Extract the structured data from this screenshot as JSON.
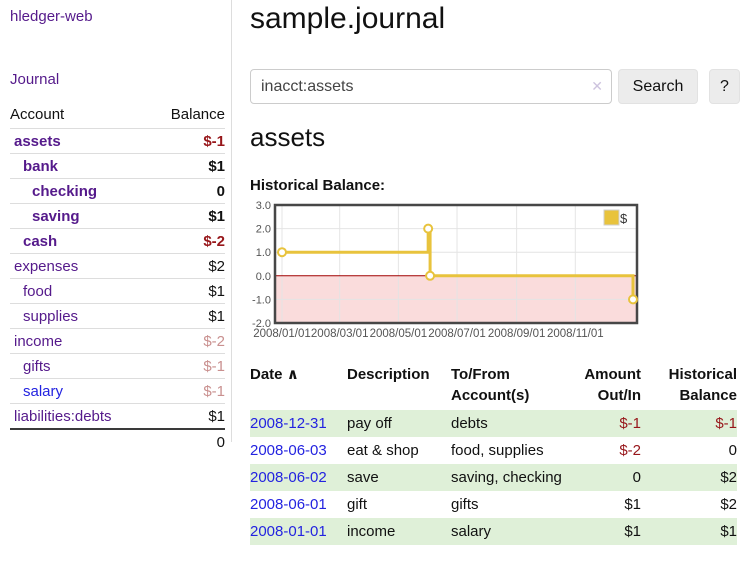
{
  "colors": {
    "link_purple": "#551a8b",
    "link_blue": "#2323e0",
    "negative": "#97161a",
    "negative_faded": "#c9908f",
    "row_green": "#dff0d8",
    "series_yellow": "#e8c33d",
    "chart_negative_fill": "#fadcdc",
    "chart_zero_line": "#a00000",
    "chart_border": "#474747",
    "grid_line": "#e4e4e4",
    "tick_text": "#545454"
  },
  "sidebar": {
    "brand": "hledger-web",
    "journal_link": "Journal",
    "accounts_table": {
      "account_header": "Account",
      "balance_header": "Balance",
      "rows": [
        {
          "name": "assets",
          "balance": "$-1",
          "depth": 1,
          "bold": true,
          "link_color": "purple",
          "balance_color": "negative"
        },
        {
          "name": "bank",
          "balance": "$1",
          "depth": 2,
          "bold": true,
          "link_color": "purple",
          "balance_color": "plain"
        },
        {
          "name": "checking",
          "balance": "0",
          "depth": 3,
          "bold": true,
          "link_color": "purple",
          "balance_color": "plain"
        },
        {
          "name": "saving",
          "balance": "$1",
          "depth": 3,
          "bold": true,
          "link_color": "purple",
          "balance_color": "plain"
        },
        {
          "name": "cash",
          "balance": "$-2",
          "depth": 2,
          "bold": true,
          "link_color": "purple",
          "balance_color": "negative"
        },
        {
          "name": "expenses",
          "balance": "$2",
          "depth": 1,
          "bold": false,
          "link_color": "purple",
          "balance_color": "plain"
        },
        {
          "name": "food",
          "balance": "$1",
          "depth": 2,
          "bold": false,
          "link_color": "purple",
          "balance_color": "plain"
        },
        {
          "name": "supplies",
          "balance": "$1",
          "depth": 2,
          "bold": false,
          "link_color": "purple",
          "balance_color": "plain"
        },
        {
          "name": "income",
          "balance": "$-2",
          "depth": 1,
          "bold": false,
          "link_color": "purple",
          "balance_color": "negative_faded"
        },
        {
          "name": "gifts",
          "balance": "$-1",
          "depth": 2,
          "bold": false,
          "link_color": "purple",
          "balance_color": "negative_faded"
        },
        {
          "name": "salary",
          "balance": "$-1",
          "depth": 2,
          "bold": false,
          "link_color": "blue",
          "balance_color": "negative_faded"
        },
        {
          "name": "liabilities:debts",
          "balance": "$1",
          "depth": 1,
          "bold": false,
          "link_color": "purple",
          "balance_color": "plain"
        }
      ],
      "total": "0"
    }
  },
  "main": {
    "title": "sample.journal",
    "search": {
      "query": "inacct:assets",
      "clear_icon": "✕",
      "search_button": "Search",
      "help_button": "?"
    },
    "account_heading": "assets",
    "section_label": "Historical Balance:",
    "register": {
      "headers": {
        "date": "Date",
        "sort_indicator": "∧",
        "description": "Description",
        "accounts": "To/From Account(s)",
        "amount": "Amount Out/In",
        "balance": "Historical Balance"
      },
      "rows": [
        {
          "date": "2008-12-31",
          "description": "pay off",
          "accounts": "debts",
          "amount": "$-1",
          "amount_color": "negative",
          "balance": "$-1",
          "balance_color": "negative",
          "shaded": true
        },
        {
          "date": "2008-06-03",
          "description": "eat & shop",
          "accounts": "food, supplies",
          "amount": "$-2",
          "amount_color": "negative",
          "balance": "0",
          "balance_color": "plain",
          "shaded": false
        },
        {
          "date": "2008-06-02",
          "description": "save",
          "accounts": "saving, checking",
          "amount": "0",
          "amount_color": "plain",
          "balance": "$2",
          "balance_color": "plain",
          "shaded": true
        },
        {
          "date": "2008-06-01",
          "description": "gift",
          "accounts": "gifts",
          "amount": "$1",
          "amount_color": "plain",
          "balance": "$2",
          "balance_color": "plain",
          "shaded": false
        },
        {
          "date": "2008-01-01",
          "description": "income",
          "accounts": "salary",
          "amount": "$1",
          "amount_color": "plain",
          "balance": "$1",
          "balance_color": "plain",
          "shaded": true
        }
      ]
    }
  },
  "chart_data": {
    "type": "line",
    "step": true,
    "title": "Historical Balance",
    "series": [
      {
        "name": "$",
        "color": "#e8c33d",
        "points": [
          {
            "date": "2008-01-01",
            "day": 0,
            "value": 1
          },
          {
            "date": "2008-06-01",
            "day": 152,
            "value": 2
          },
          {
            "date": "2008-06-03",
            "day": 154,
            "value": 0
          },
          {
            "date": "2008-12-31",
            "day": 365,
            "value": -1
          }
        ]
      }
    ],
    "x_ticks": [
      {
        "label": "2008/01/01",
        "day": 0
      },
      {
        "label": "2008/03/01",
        "day": 60
      },
      {
        "label": "2008/05/01",
        "day": 121
      },
      {
        "label": "2008/07/01",
        "day": 182
      },
      {
        "label": "2008/09/01",
        "day": 244
      },
      {
        "label": "2008/11/01",
        "day": 305
      }
    ],
    "y_ticks": [
      {
        "label": "3.0",
        "value": 3
      },
      {
        "label": "2.0",
        "value": 2
      },
      {
        "label": "1.0",
        "value": 1
      },
      {
        "label": "0.0",
        "value": 0
      },
      {
        "label": "-1.0",
        "value": -1
      },
      {
        "label": "-2.0",
        "value": -2
      }
    ],
    "ylim": [
      -2,
      3
    ],
    "x_range_days": [
      0,
      365
    ],
    "grid": true,
    "negative_region": true,
    "legend": {
      "label": "$",
      "position": "top-right"
    }
  }
}
